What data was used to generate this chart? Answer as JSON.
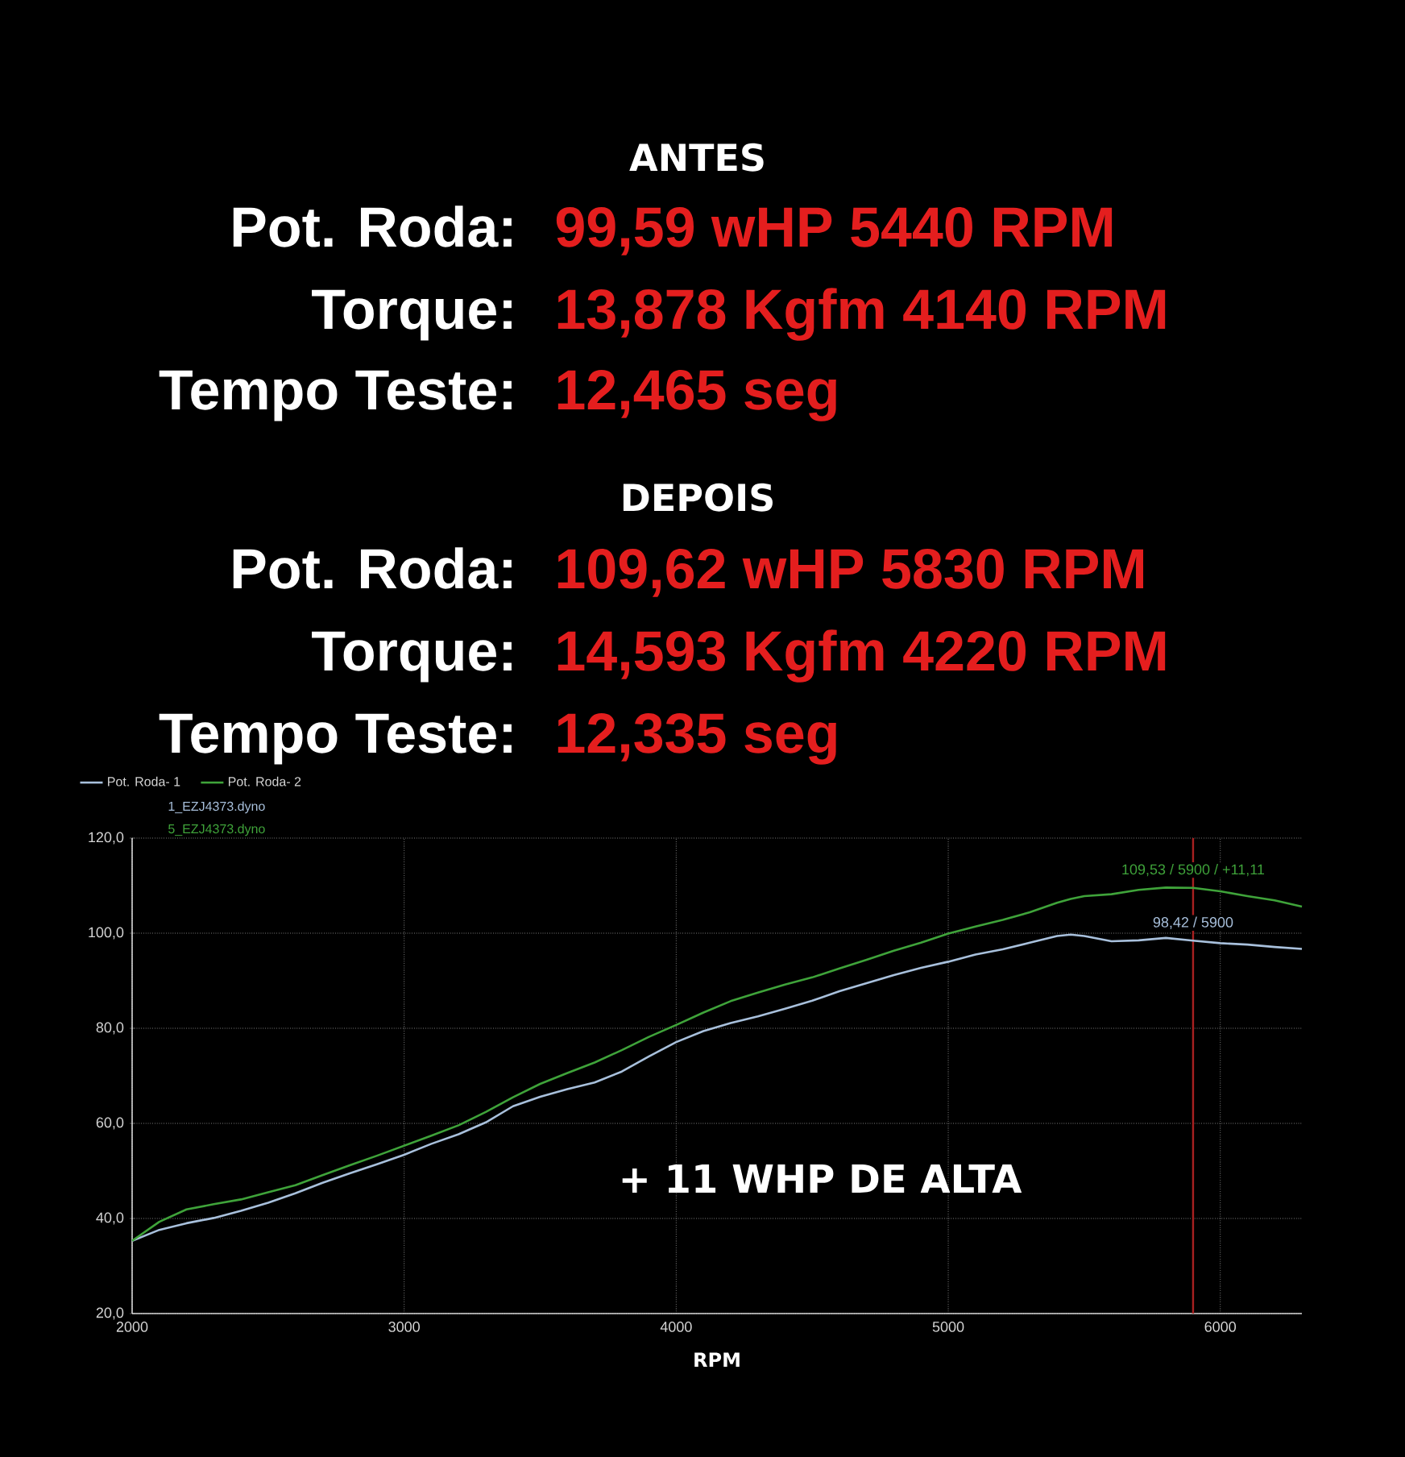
{
  "chart_data": {
    "type": "line",
    "xlabel": "RPM",
    "x": [
      2000,
      2100,
      2200,
      2300,
      2400,
      2500,
      2600,
      2700,
      2800,
      2900,
      3000,
      3100,
      3200,
      3300,
      3400,
      3500,
      3600,
      3700,
      3800,
      3900,
      4000,
      4100,
      4200,
      4300,
      4400,
      4500,
      4600,
      4700,
      4800,
      4900,
      5000,
      5100,
      5200,
      5300,
      5400,
      5450,
      5500,
      5600,
      5700,
      5800,
      5900,
      6000,
      6100,
      6200,
      6300
    ],
    "series": [
      {
        "name": "Pot. Roda- 1",
        "color": "#a8c0dc",
        "values": [
          35.3,
          37.6,
          39.0,
          40.1,
          41.6,
          43.3,
          45.3,
          47.5,
          49.5,
          51.4,
          53.4,
          55.7,
          57.7,
          60.2,
          63.6,
          65.6,
          67.2,
          68.6,
          70.9,
          74.1,
          77.1,
          79.4,
          81.1,
          82.5,
          84.1,
          85.8,
          87.8,
          89.5,
          91.2,
          92.7,
          94.0,
          95.5,
          96.6,
          98.0,
          99.4,
          99.7,
          99.4,
          98.3,
          98.5,
          99.0,
          98.42,
          97.9,
          97.6,
          97.1,
          96.7
        ]
      },
      {
        "name": "Pot. Roda- 2",
        "color": "#3fa33a",
        "values": [
          35.3,
          39.3,
          41.9,
          43.0,
          44.0,
          45.5,
          47.0,
          49.1,
          51.2,
          53.2,
          55.3,
          57.4,
          59.6,
          62.4,
          65.5,
          68.3,
          70.6,
          72.8,
          75.4,
          78.2,
          80.7,
          83.3,
          85.7,
          87.5,
          89.2,
          90.7,
          92.6,
          94.4,
          96.3,
          98.0,
          99.9,
          101.4,
          102.8,
          104.4,
          106.4,
          107.2,
          107.8,
          108.2,
          109.1,
          109.6,
          109.53,
          108.8,
          107.8,
          106.9,
          105.6
        ]
      }
    ],
    "xlim": [
      2000,
      6300
    ],
    "xticks": [
      2000,
      3000,
      4000,
      5000,
      6000
    ],
    "ylim": [
      20,
      120
    ],
    "yticks": [
      {
        "value": 20,
        "label": "20,0"
      },
      {
        "value": 40,
        "label": "40,0"
      },
      {
        "value": 60,
        "label": "60,0"
      },
      {
        "value": 80,
        "label": "80,0"
      },
      {
        "value": 100,
        "label": "100,0"
      },
      {
        "value": 120,
        "label": "120,0"
      }
    ],
    "ref_lines": [
      {
        "axis": "x",
        "value": 5900,
        "color": "#a82020"
      }
    ],
    "grid": true,
    "legend": "top left",
    "marker": "none",
    "line_style": "solid",
    "annotations": [
      "ANTES",
      "Pot. Roda:",
      "99,59 wHP 5440 RPM",
      "Torque:",
      "13,878 Kgfm 4140 RPM",
      "Tempo Teste:",
      "12,465 seg",
      "DEPOIS",
      "Pot. Roda:",
      "109,62 wHP 5830 RPM",
      "Torque:",
      "14,593 Kgfm 4220 RPM",
      "Tempo Teste:",
      "12,335 seg",
      "+ 11 WHP DE ALTA",
      "1_EZJ4373.dyno",
      "5_EZJ4373.dyno",
      {
        "text": "109,53 / 5900 / +11,11",
        "x": 5900,
        "y": 109.53
      },
      {
        "text": "98,42 / 5900",
        "x": 5900,
        "y": 98.42
      }
    ]
  }
}
